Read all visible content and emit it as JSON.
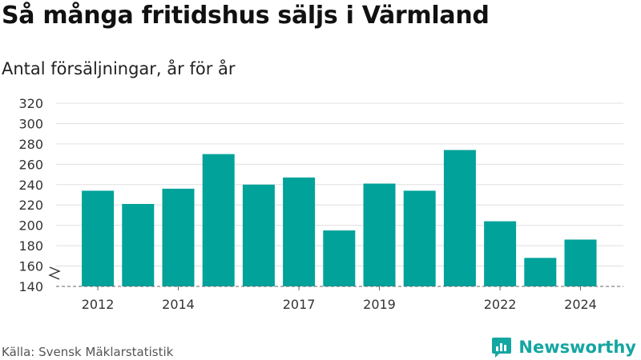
{
  "header": {
    "title": "Så många fritidshus säljs i Värmland",
    "subtitle": "Antal försäljningar, år för år"
  },
  "footer": {
    "source": "Källa: Svensk Mäklarstatistik",
    "brand": "Newsworthy"
  },
  "colors": {
    "bar": "#00a29a",
    "grid": "#e0e0e0",
    "axis_text": "#333333",
    "brand": "#14a6a1"
  },
  "chart_data": {
    "type": "bar",
    "categories": [
      "2012",
      "2013",
      "2014",
      "2015",
      "2016",
      "2017",
      "2018",
      "2019",
      "2020",
      "2021",
      "2022",
      "2023",
      "2024"
    ],
    "values": [
      234,
      221,
      236,
      270,
      240,
      247,
      195,
      241,
      234,
      274,
      204,
      168,
      186
    ],
    "x_tick_labels": [
      "2012",
      "2014",
      "2017",
      "2019",
      "2022",
      "2024"
    ],
    "yticks": [
      140,
      160,
      180,
      200,
      220,
      240,
      260,
      280,
      300,
      320
    ],
    "ylim": [
      140,
      320
    ],
    "y_axis_break": true,
    "grid": true,
    "title": "",
    "xlabel": "",
    "ylabel": ""
  }
}
